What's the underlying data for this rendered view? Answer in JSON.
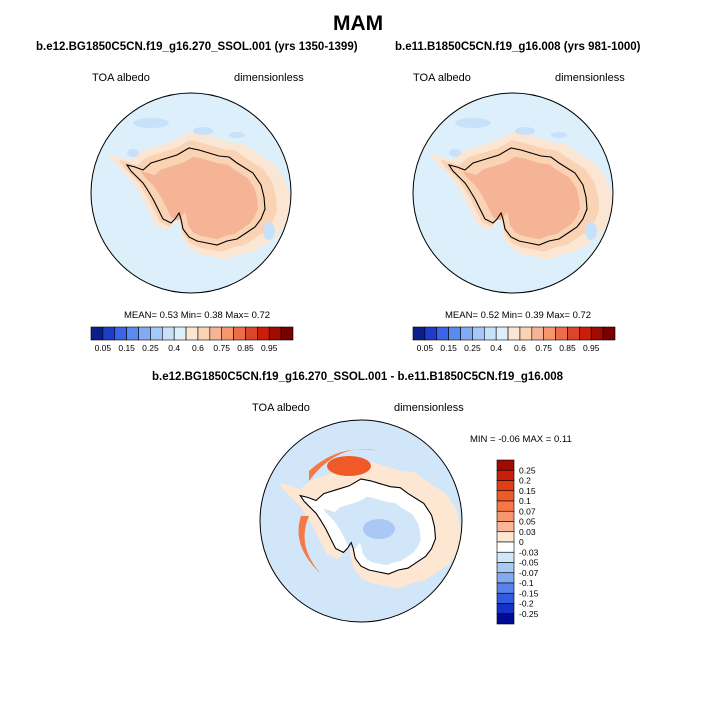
{
  "page_title": "MAM",
  "panels": [
    {
      "case": "b.e12.BG1850C5CN.f19_g16.270_SSOL.001 (yrs 1350-1399)",
      "left_label": "TOA albedo",
      "right_label": "dimensionless",
      "stats": {
        "mean_label": "MEAN=",
        "mean": "0.53",
        "min_label": "Min=",
        "min": "0.38",
        "max_label": "Max=",
        "max": "0.72"
      }
    },
    {
      "case": "b.e11.B1850C5CN.f19_g16.008 (yrs 981-1000)",
      "left_label": "TOA albedo",
      "right_label": "dimensionless",
      "stats": {
        "mean_label": "MEAN=",
        "mean": "0.52",
        "min_label": "Min=",
        "min": "0.39",
        "max_label": "Max=",
        "max": "0.72"
      }
    },
    {
      "case": "b.e12.BG1850C5CN.f19_g16.270_SSOL.001 - b.e11.B1850C5CN.f19_g16.008",
      "left_label": "TOA albedo",
      "right_label": "dimensionless",
      "stats": {
        "min_label": "MIN =",
        "min": "-0.06",
        "max_label": "MAX =",
        "max": "0.11"
      }
    }
  ],
  "chart_data": [
    {
      "type": "heatmap",
      "projection": "south polar stereographic",
      "title": "b.e12.BG1850C5CN.f19_g16.270_SSOL.001 (yrs 1350-1399)",
      "colorbar": {
        "orientation": "horizontal",
        "levels": [
          "0.05",
          "0.15",
          "0.25",
          "0.4",
          "0.6",
          "0.75",
          "0.85",
          "0.95"
        ],
        "colors": [
          "#0a1e8c",
          "#1e3cc8",
          "#3c64e6",
          "#5a8cf0",
          "#82aaf5",
          "#a5c8fa",
          "#c8e1fa",
          "#dceffa",
          "#fae6d2",
          "#fad2b4",
          "#f5b496",
          "#f5966e",
          "#eb6e46",
          "#dc4628",
          "#c81e0a",
          "#a00a00",
          "#780000"
        ]
      },
      "regions": [
        {
          "name": "ocean",
          "value": 0.45,
          "color": "#dceffa"
        },
        {
          "name": "sea-ice ring",
          "value": 0.55,
          "color": "#fae6d2"
        },
        {
          "name": "coastal ring",
          "value": 0.62,
          "color": "#fad2b4"
        },
        {
          "name": "antarctic plateau",
          "value": 0.7,
          "color": "#f5b496"
        },
        {
          "name": "low-albedo patches",
          "value": 0.38,
          "color": "#c8e1fa"
        }
      ]
    },
    {
      "type": "heatmap",
      "projection": "south polar stereographic",
      "title": "b.e11.B1850C5CN.f19_g16.008 (yrs 981-1000)",
      "colorbar": {
        "orientation": "horizontal",
        "levels": [
          "0.05",
          "0.15",
          "0.25",
          "0.4",
          "0.6",
          "0.75",
          "0.85",
          "0.95"
        ],
        "colors": [
          "#0a1e8c",
          "#1e3cc8",
          "#3c64e6",
          "#5a8cf0",
          "#82aaf5",
          "#a5c8fa",
          "#c8e1fa",
          "#dceffa",
          "#fae6d2",
          "#fad2b4",
          "#f5b496",
          "#f5966e",
          "#eb6e46",
          "#dc4628",
          "#c81e0a",
          "#a00a00",
          "#780000"
        ]
      },
      "regions": [
        {
          "name": "ocean",
          "value": 0.45,
          "color": "#dceffa"
        },
        {
          "name": "sea-ice ring",
          "value": 0.55,
          "color": "#fae6d2"
        },
        {
          "name": "coastal ring",
          "value": 0.62,
          "color": "#fad2b4"
        },
        {
          "name": "antarctic plateau",
          "value": 0.7,
          "color": "#f5b496"
        },
        {
          "name": "low-albedo patches",
          "value": 0.39,
          "color": "#c8e1fa"
        }
      ]
    },
    {
      "type": "heatmap",
      "projection": "south polar stereographic",
      "title": "b.e12.BG1850C5CN.f19_g16.270_SSOL.001 - b.e11.B1850C5CN.f19_g16.008",
      "colorbar": {
        "orientation": "vertical",
        "levels": [
          "0.25",
          "0.2",
          "0.15",
          "0.1",
          "0.07",
          "0.05",
          "0.03",
          "0",
          "-0.03",
          "-0.05",
          "-0.07",
          "-0.1",
          "-0.15",
          "-0.2",
          "-0.25"
        ],
        "colors": [
          "#a00a00",
          "#c81e0a",
          "#e63c14",
          "#f05a28",
          "#f57846",
          "#f5966e",
          "#fab496",
          "#fde6d2",
          "#ffffff",
          "#d2e6fa",
          "#aac8f5",
          "#82aaf0",
          "#5a82eb",
          "#325ae1",
          "#1432c8",
          "#000a96"
        ]
      },
      "regions": [
        {
          "name": "ocean",
          "value": 0.0,
          "color": "#d2e6fa"
        },
        {
          "name": "weak positive ring",
          "value": 0.03,
          "color": "#fde6d2"
        },
        {
          "name": "positive Weddell/Peninsula arc",
          "value": 0.07,
          "color": "#f57846"
        },
        {
          "name": "maximum near Weddell Sea",
          "value": 0.11,
          "color": "#f05a28"
        },
        {
          "name": "negative East Antarctica interior",
          "value": -0.03,
          "color": "#d2e6fa"
        },
        {
          "name": "negative minimum",
          "value": -0.06,
          "color": "#aac8f5"
        }
      ]
    }
  ]
}
